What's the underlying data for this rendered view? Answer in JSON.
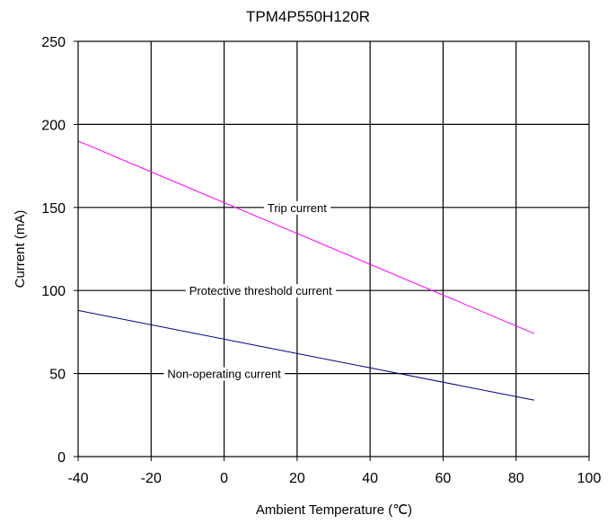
{
  "chart_data": {
    "type": "line",
    "title": "TPM4P550H120R",
    "xlabel": "Ambient Temperature (℃)",
    "ylabel": "Current (mA)",
    "xlim": [
      -40,
      100
    ],
    "ylim": [
      0,
      250
    ],
    "xticks": [
      "-40",
      "-20",
      "0",
      "20",
      "40",
      "60",
      "80",
      "100"
    ],
    "yticks": [
      "0",
      "50",
      "100",
      "150",
      "200",
      "250"
    ],
    "grid": true,
    "series": [
      {
        "color": "#ff00ff",
        "x": [
          -40,
          85
        ],
        "values": [
          190,
          74
        ]
      },
      {
        "color": "#000080",
        "x": [
          -40,
          85
        ],
        "values": [
          88,
          34
        ]
      }
    ],
    "annotations": [
      {
        "text": "Trip current",
        "x": 20,
        "y": 150
      },
      {
        "text": "Protective threshold current",
        "x": 10,
        "y": 100
      },
      {
        "text": "Non-operating current",
        "x": 0,
        "y": 50
      }
    ]
  }
}
